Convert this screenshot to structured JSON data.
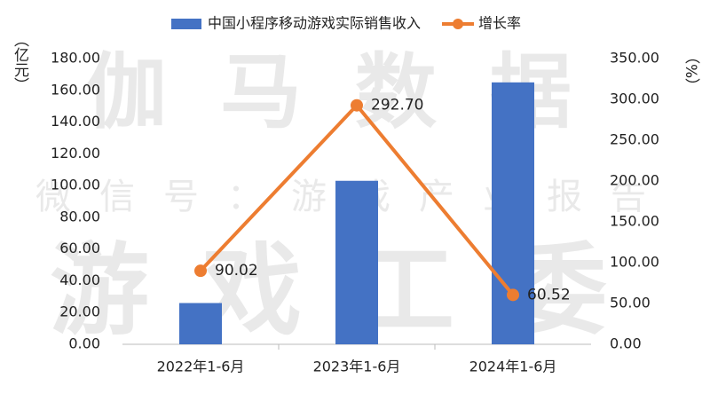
{
  "chart_data": {
    "type": "bar",
    "categories": [
      "2022年1-6月",
      "2023年1-6月",
      "2024年1-6月"
    ],
    "series": [
      {
        "name": "中国小程序移动游戏实际销售收入",
        "type": "bar",
        "color": "#4472c4",
        "values": [
          26,
          103,
          165
        ]
      },
      {
        "name": "增长率",
        "type": "line",
        "axis": "y2",
        "color": "#ed7d31",
        "values": [
          90.02,
          292.7,
          60.52
        ],
        "value_labels": [
          "90.02",
          "292.70",
          "60.52"
        ]
      }
    ],
    "ylabel": "（亿元）",
    "y2label": "（%）",
    "ylim": [
      0,
      180
    ],
    "yticks": [
      {
        "value": 0,
        "label": "0.00"
      },
      {
        "value": 20,
        "label": "20.00"
      },
      {
        "value": 40,
        "label": "40.00"
      },
      {
        "value": 60,
        "label": "60.00"
      },
      {
        "value": 80,
        "label": "80.00"
      },
      {
        "value": 100,
        "label": "100.00"
      },
      {
        "value": 120,
        "label": "120.00"
      },
      {
        "value": 140,
        "label": "140.00"
      },
      {
        "value": 160,
        "label": "160.00"
      },
      {
        "value": 180,
        "label": "180.00"
      }
    ],
    "y2lim": [
      0,
      350
    ],
    "y2ticks": [
      {
        "value": 0,
        "label": "0.00"
      },
      {
        "value": 50,
        "label": "50.00"
      },
      {
        "value": 100,
        "label": "100.00"
      },
      {
        "value": 150,
        "label": "150.00"
      },
      {
        "value": 200,
        "label": "200.00"
      },
      {
        "value": 250,
        "label": "250.00"
      },
      {
        "value": 300,
        "label": "300.00"
      },
      {
        "value": 350,
        "label": "350.00"
      }
    ],
    "legend": "top",
    "watermarks": [
      "伽马数据",
      "微信号：游戏产业报告",
      "游戏工委"
    ]
  }
}
